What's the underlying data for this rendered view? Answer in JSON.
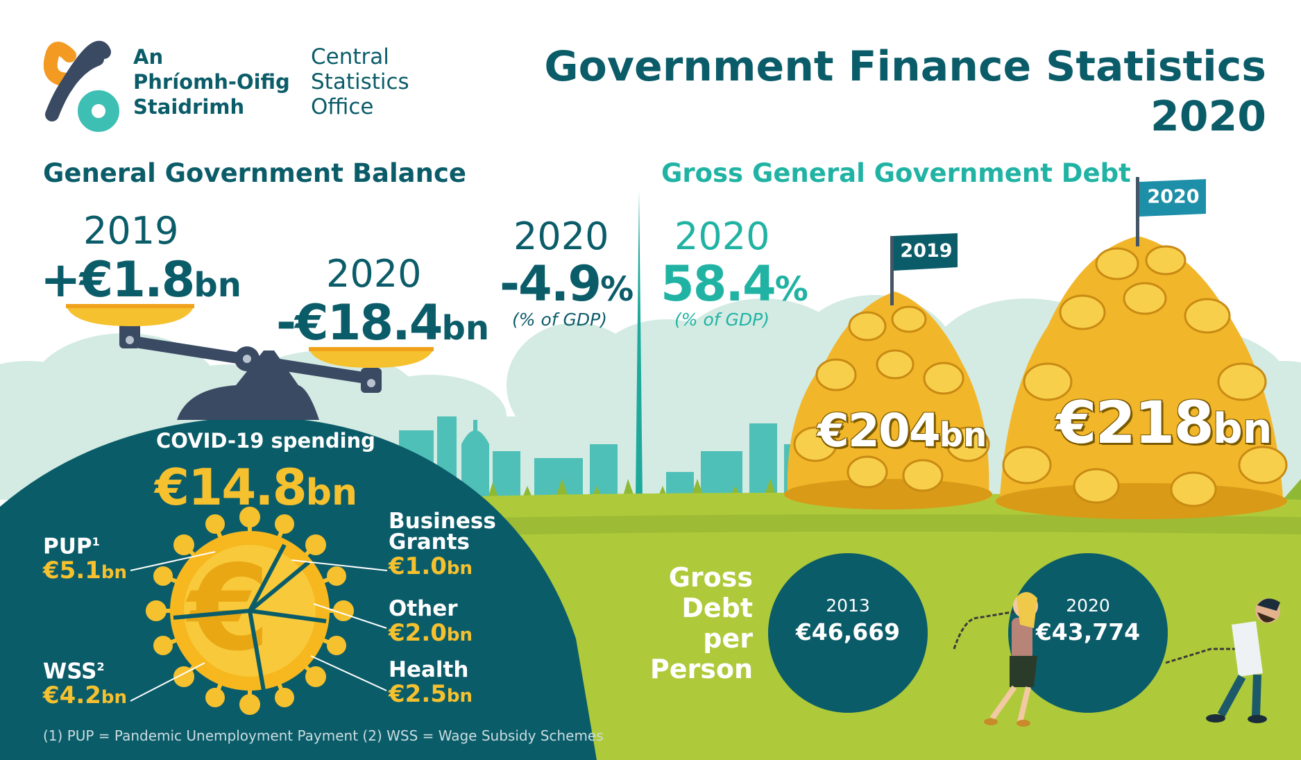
{
  "header": {
    "logo_irish": [
      "An",
      "Phríomh-Oifig",
      "Staidrimh"
    ],
    "logo_english": [
      "Central",
      "Statistics",
      "Office"
    ],
    "title_line1": "Government Finance Statistics",
    "title_line2": "2020"
  },
  "balance": {
    "section_title": "General Government Balance",
    "y2019": {
      "year": "2019",
      "value": "+€1.8",
      "unit": "bn"
    },
    "y2020": {
      "year": "2020",
      "value": "-€18.4",
      "unit": "bn"
    },
    "gdp": {
      "year": "2020",
      "value": "-4.9",
      "unit": "%",
      "note": "(% of GDP)"
    }
  },
  "debt": {
    "section_title": "Gross General Government Debt",
    "gdp": {
      "year": "2020",
      "value": "58.4",
      "unit": "%",
      "note": "(% of GDP)"
    },
    "flags": {
      "y2019": "2019",
      "y2020": "2020"
    },
    "pile_2019": {
      "value": "€204",
      "unit": "bn"
    },
    "pile_2020": {
      "value": "€218",
      "unit": "bn"
    }
  },
  "covid": {
    "label": "COVID-19 spending",
    "total": {
      "value": "€14.8",
      "unit": "bn"
    },
    "categories": [
      {
        "label": "PUP",
        "sup": "1",
        "value": "€5.1",
        "unit": "bn"
      },
      {
        "label": "WSS",
        "sup": "2",
        "value": "€4.2",
        "unit": "bn"
      },
      {
        "label_line1": "Business",
        "label_line2": "Grants",
        "value": "€1.0",
        "unit": "bn"
      },
      {
        "label": "Other",
        "value": "€2.0",
        "unit": "bn"
      },
      {
        "label": "Health",
        "value": "€2.5",
        "unit": "bn"
      }
    ],
    "footnote": "(1) PUP = Pandemic Unemployment Payment  (2) WSS = Wage Subsidy Schemes"
  },
  "per_person": {
    "label_lines": [
      "Gross",
      "Debt",
      "per",
      "Person"
    ],
    "y2013": {
      "year": "2013",
      "value": "€46,669"
    },
    "y2020": {
      "year": "2020",
      "value": "€43,774"
    }
  },
  "colors": {
    "teal_dark": "#0b5c69",
    "teal_light": "#20b3a4",
    "yellow": "#f6c12e",
    "grass": "#aeca3a",
    "cloud": "#cfe8e0"
  },
  "icons": [
    "cso-logo-icon",
    "balance-scale-icon",
    "coronavirus-euro-coin-icon",
    "coin-pile-icon",
    "flag-icon",
    "spire-icon",
    "woman-pulling-rope-icon",
    "man-pulling-rope-icon"
  ]
}
